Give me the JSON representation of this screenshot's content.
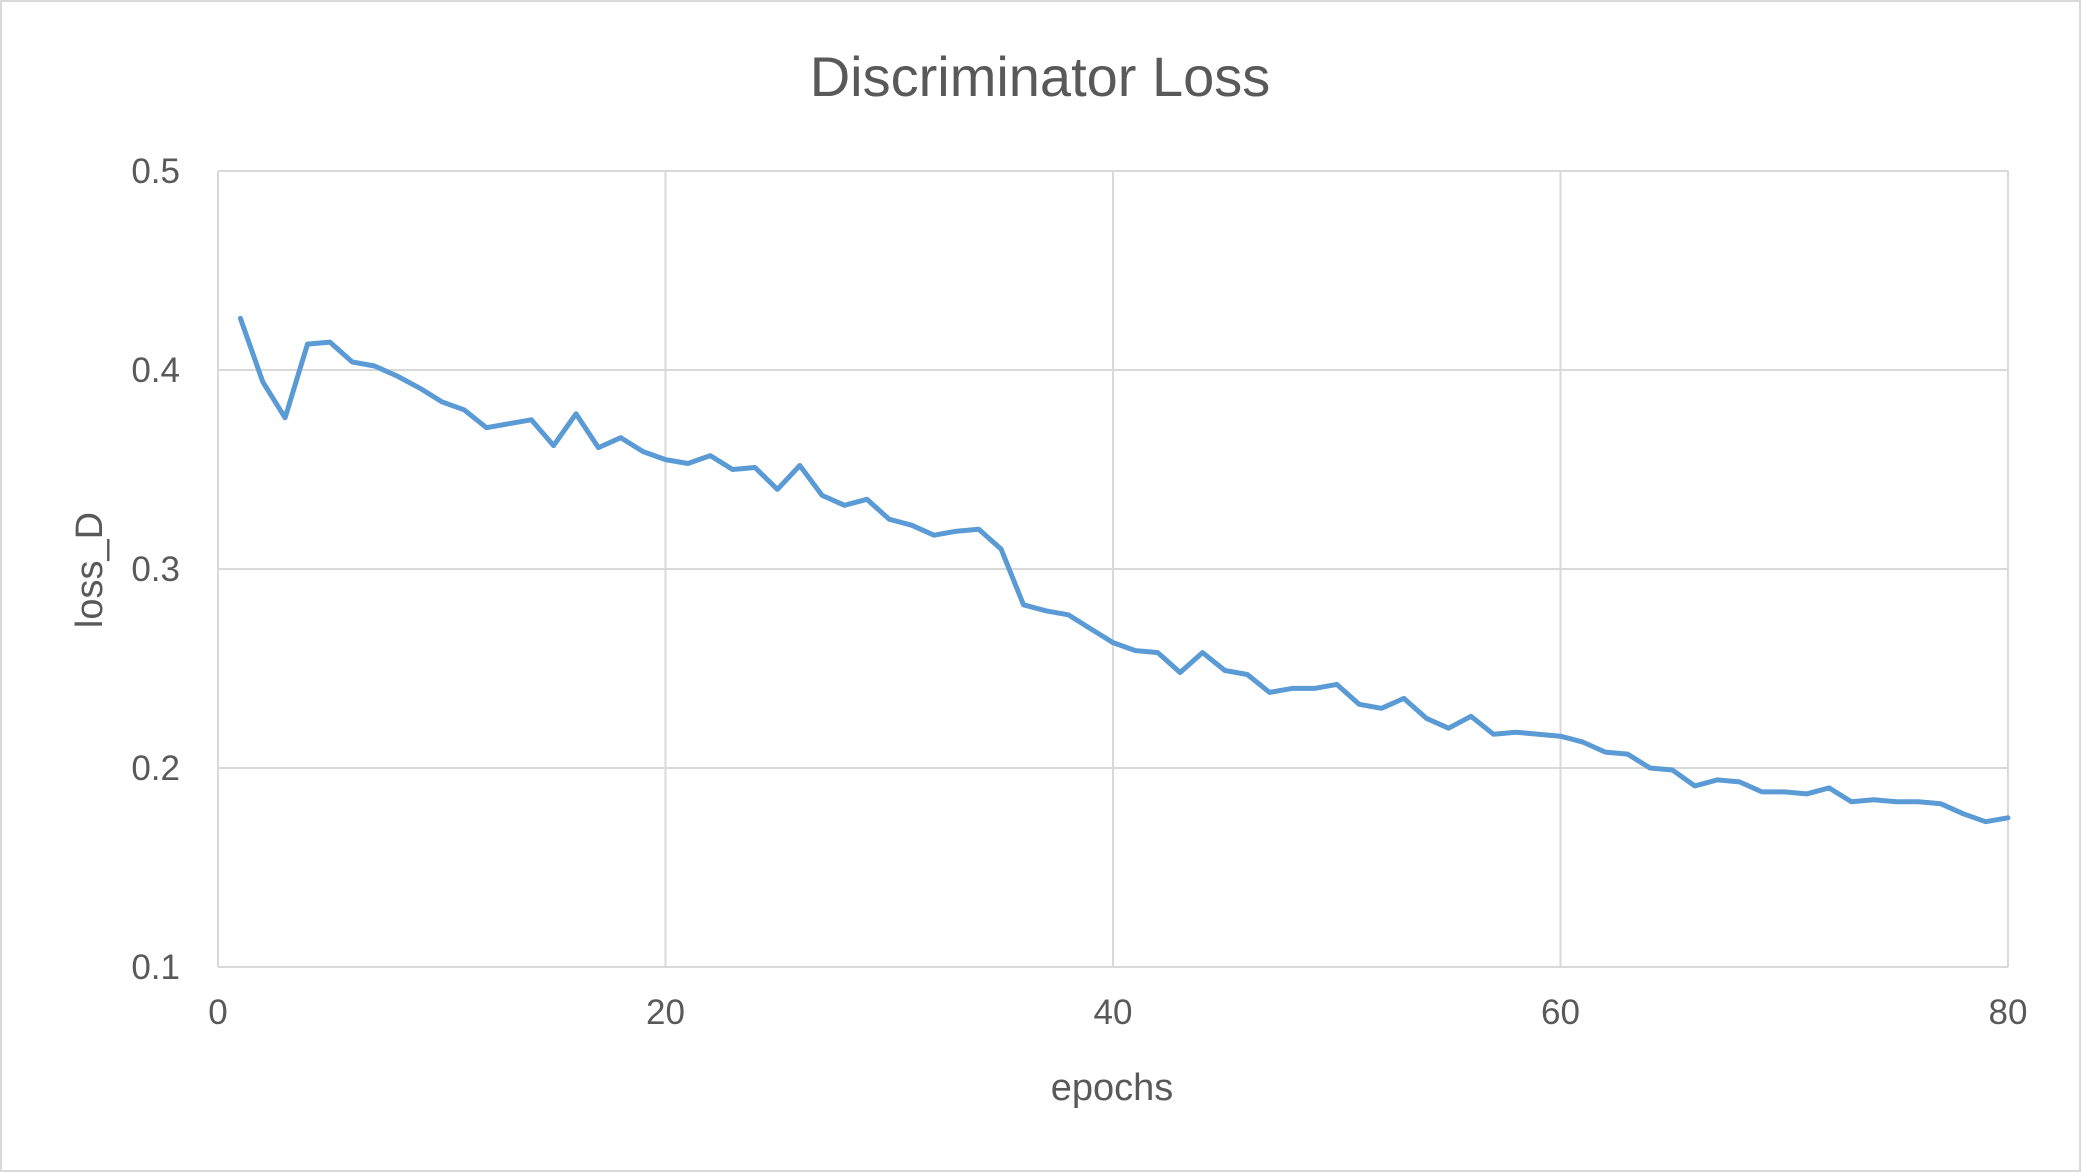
{
  "chart_data": {
    "type": "line",
    "title": "Discriminator Loss",
    "xlabel": "epochs",
    "ylabel": "loss_D",
    "xlim": [
      0,
      80
    ],
    "ylim": [
      0.1,
      0.5
    ],
    "xticks": [
      0,
      20,
      40,
      60,
      80
    ],
    "yticks": [
      0.1,
      0.2,
      0.3,
      0.4,
      0.5
    ],
    "xtick_labels": [
      "0",
      "20",
      "40",
      "60",
      "80"
    ],
    "ytick_labels": [
      "0.1",
      "0.2",
      "0.3",
      "0.4",
      "0.5"
    ],
    "grid": true,
    "legend": "none",
    "series": [
      {
        "color": "#5B9BD5",
        "x": [
          1,
          2,
          3,
          4,
          5,
          6,
          7,
          8,
          9,
          10,
          11,
          12,
          13,
          14,
          15,
          16,
          17,
          18,
          19,
          20,
          21,
          22,
          23,
          24,
          25,
          26,
          27,
          28,
          29,
          30,
          31,
          32,
          33,
          34,
          35,
          36,
          37,
          38,
          39,
          40,
          41,
          42,
          43,
          44,
          45,
          46,
          47,
          48,
          49,
          50,
          51,
          52,
          53,
          54,
          55,
          56,
          57,
          58,
          59,
          60,
          61,
          62,
          63,
          64,
          65,
          66,
          67,
          68,
          69,
          70,
          71,
          72,
          73,
          74,
          75,
          76,
          77,
          78,
          79,
          80
        ],
        "values": [
          0.426,
          0.394,
          0.376,
          0.413,
          0.414,
          0.404,
          0.402,
          0.397,
          0.391,
          0.384,
          0.38,
          0.371,
          0.373,
          0.375,
          0.362,
          0.378,
          0.361,
          0.366,
          0.359,
          0.355,
          0.353,
          0.357,
          0.35,
          0.351,
          0.34,
          0.352,
          0.337,
          0.332,
          0.335,
          0.325,
          0.322,
          0.317,
          0.319,
          0.32,
          0.31,
          0.282,
          0.279,
          0.277,
          0.27,
          0.263,
          0.259,
          0.258,
          0.248,
          0.258,
          0.249,
          0.247,
          0.238,
          0.24,
          0.24,
          0.242,
          0.232,
          0.23,
          0.235,
          0.225,
          0.22,
          0.226,
          0.217,
          0.218,
          0.217,
          0.216,
          0.213,
          0.208,
          0.207,
          0.2,
          0.199,
          0.191,
          0.194,
          0.193,
          0.188,
          0.188,
          0.187,
          0.19,
          0.183,
          0.184,
          0.183,
          0.183,
          0.182,
          0.177,
          0.173,
          0.175
        ]
      }
    ]
  }
}
